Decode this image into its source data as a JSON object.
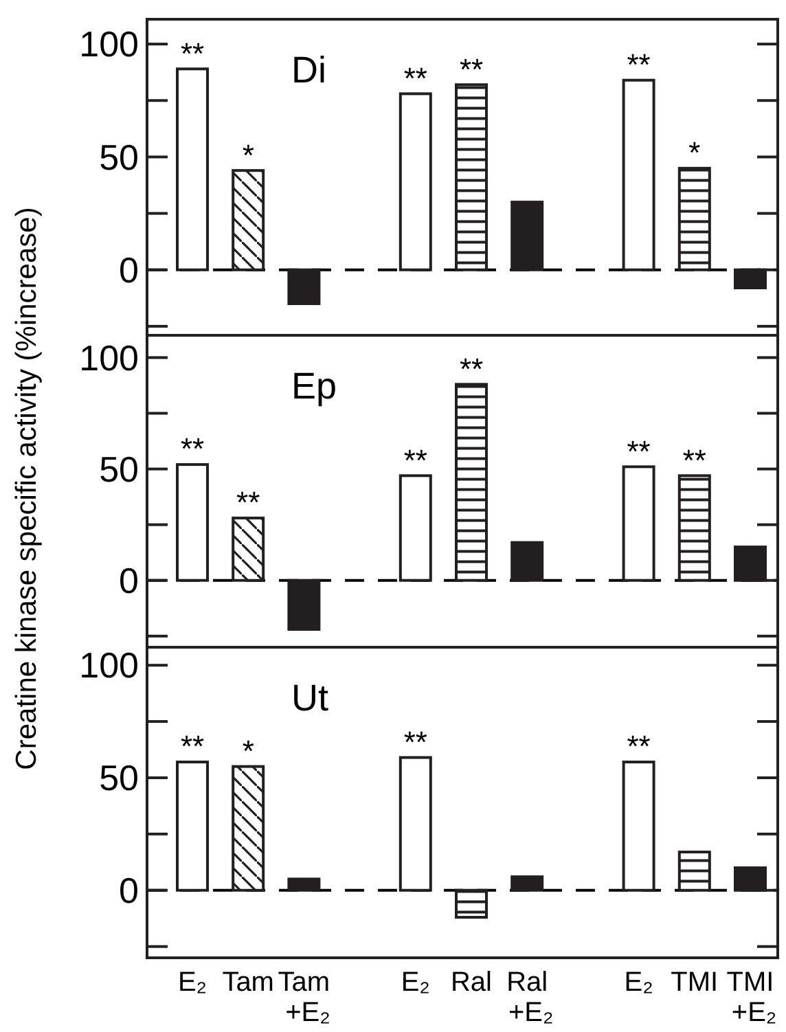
{
  "chart_data": [
    {
      "type": "bar",
      "title": "Di",
      "categories": [
        null,
        null,
        null,
        null,
        null,
        null,
        null,
        null,
        null,
        null,
        null
      ],
      "ylim": [
        -29,
        111
      ],
      "yticks": [
        {
          "value": -25,
          "label": null
        },
        0,
        {
          "value": 25,
          "label": null
        },
        50,
        {
          "value": 75,
          "label": null
        },
        100
      ],
      "tick_labels": "y",
      "ref_lines": [
        {
          "axis": "y",
          "value": 0,
          "color": "#000000",
          "line_style": "dashed"
        }
      ],
      "series": [
        {
          "color": "#ffffff",
          "values": [
            89,
            null,
            null,
            null,
            78,
            null,
            null,
            null,
            84,
            null,
            null
          ],
          "value_labels": [
            "**",
            null,
            null,
            null,
            "**",
            null,
            null,
            null,
            "**",
            null,
            null
          ]
        },
        {
          "color": "#231f20",
          "values": [
            null,
            44,
            null,
            null,
            null,
            null,
            null,
            null,
            null,
            null,
            null
          ],
          "value_labels": [
            null,
            "*",
            null,
            null,
            null,
            null,
            null,
            null,
            null,
            null,
            null
          ]
        },
        {
          "color": "#231f20",
          "values": [
            null,
            null,
            null,
            null,
            null,
            82,
            null,
            null,
            null,
            45,
            null
          ],
          "value_labels": [
            null,
            null,
            null,
            null,
            null,
            "**",
            null,
            null,
            null,
            "*",
            null
          ]
        },
        {
          "color": "#231f20",
          "values": [
            null,
            null,
            -15,
            null,
            null,
            null,
            30,
            null,
            null,
            null,
            -8
          ]
        }
      ]
    },
    {
      "type": "bar",
      "title": "Ep",
      "ylabel": "Creatine kinase specific activity (%increase)",
      "categories": [
        null,
        null,
        null,
        null,
        null,
        null,
        null,
        null,
        null,
        null,
        null
      ],
      "ylim": [
        -30,
        110
      ],
      "yticks": [
        {
          "value": -25,
          "label": null
        },
        0,
        {
          "value": 25,
          "label": null
        },
        50,
        {
          "value": 75,
          "label": null
        },
        100
      ],
      "tick_labels": "y",
      "ref_lines": [
        {
          "axis": "y",
          "value": 0,
          "color": "#000000",
          "line_style": "dashed"
        }
      ],
      "series": [
        {
          "color": "#ffffff",
          "values": [
            52,
            null,
            null,
            null,
            47,
            null,
            null,
            null,
            51,
            null,
            null
          ],
          "value_labels": [
            "**",
            null,
            null,
            null,
            "**",
            null,
            null,
            null,
            "**",
            null,
            null
          ]
        },
        {
          "color": "#231f20",
          "values": [
            null,
            28,
            null,
            null,
            null,
            null,
            null,
            null,
            null,
            null,
            null
          ],
          "value_labels": [
            null,
            "**",
            null,
            null,
            null,
            null,
            null,
            null,
            null,
            null,
            null
          ]
        },
        {
          "color": "#231f20",
          "values": [
            null,
            null,
            null,
            null,
            null,
            88,
            null,
            null,
            null,
            47,
            null
          ],
          "value_labels": [
            null,
            null,
            null,
            null,
            null,
            "**",
            null,
            null,
            null,
            "**",
            null
          ]
        },
        {
          "color": "#231f20",
          "values": [
            null,
            null,
            -22,
            null,
            null,
            null,
            17,
            null,
            null,
            null,
            15
          ]
        }
      ]
    },
    {
      "type": "bar",
      "title": "Ut",
      "categories": [
        "E₂",
        "Tam",
        "Tam\n+E₂",
        null,
        "E₂",
        "Ral",
        "Ral\n+E₂",
        null,
        "E₂",
        "TMI",
        "TMI\n+E₂"
      ],
      "ylim": [
        -30,
        108
      ],
      "yticks": [
        {
          "value": -25,
          "label": null
        },
        0,
        {
          "value": 25,
          "label": null
        },
        50,
        {
          "value": 75,
          "label": null
        },
        100
      ],
      "ref_lines": [
        {
          "axis": "y",
          "value": 0,
          "color": "#000000",
          "line_style": "dashed"
        }
      ],
      "series": [
        {
          "color": "#ffffff",
          "values": [
            57,
            null,
            null,
            null,
            59,
            null,
            null,
            null,
            57,
            null,
            null
          ],
          "value_labels": [
            "**",
            null,
            null,
            null,
            "**",
            null,
            null,
            null,
            "**",
            null,
            null
          ]
        },
        {
          "color": "#231f20",
          "values": [
            null,
            55,
            null,
            null,
            null,
            null,
            null,
            null,
            null,
            null,
            null
          ],
          "value_labels": [
            null,
            "*",
            null,
            null,
            null,
            null,
            null,
            null,
            null,
            null,
            null
          ]
        },
        {
          "color": "#231f20",
          "values": [
            null,
            null,
            null,
            null,
            null,
            -12,
            null,
            null,
            null,
            17,
            null
          ]
        },
        {
          "color": "#231f20",
          "values": [
            null,
            null,
            5,
            null,
            null,
            null,
            6,
            null,
            null,
            null,
            10
          ]
        }
      ]
    }
  ]
}
